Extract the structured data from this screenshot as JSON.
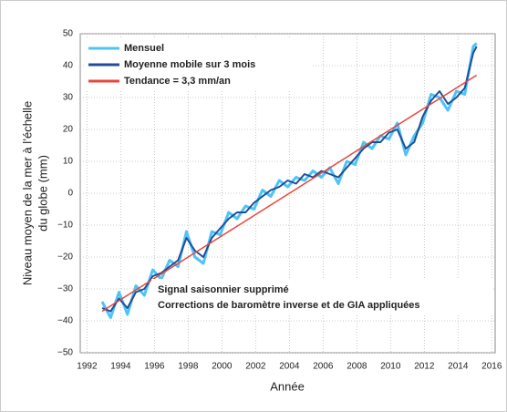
{
  "chart_data": {
    "type": "line",
    "y_label_lines": [
      "Niveau moyen de la mer à l’échelle",
      "du globe (mm)"
    ],
    "x_label": "Année",
    "annotations": [
      "Signal saisonnier supprimé",
      "Corrections de baromètre inverse et de GIA appliquées"
    ],
    "xlim": [
      1991.6,
      2016.2
    ],
    "ylim": [
      -50,
      50
    ],
    "xticks": [
      1992,
      1994,
      1996,
      1998,
      2000,
      2002,
      2004,
      2006,
      2008,
      2010,
      2012,
      2014,
      2016
    ],
    "yticks": [
      {
        "value": -50,
        "label": "−50"
      },
      {
        "value": -40,
        "label": "−40"
      },
      {
        "value": -30,
        "label": "−30"
      },
      {
        "value": -20,
        "label": "−20"
      },
      {
        "value": -10,
        "label": "−10"
      },
      0,
      10,
      20,
      30,
      40,
      50
    ],
    "grid": true,
    "legend": "upper left",
    "series": [
      {
        "name": "Mensuel",
        "color": "#4fc3f7",
        "x": [
          1992.9,
          1993.4,
          1993.9,
          1994.4,
          1994.9,
          1995.4,
          1995.9,
          1996.4,
          1996.9,
          1997.4,
          1997.9,
          1998.4,
          1998.9,
          1999.4,
          1999.9,
          2000.4,
          2000.9,
          2001.4,
          2001.9,
          2002.4,
          2002.9,
          2003.4,
          2003.9,
          2004.4,
          2004.9,
          2005.4,
          2005.9,
          2006.4,
          2006.9,
          2007.4,
          2007.9,
          2008.4,
          2008.9,
          2009.4,
          2009.9,
          2010.4,
          2010.9,
          2011.4,
          2011.9,
          2012.4,
          2012.9,
          2013.4,
          2013.9,
          2014.4,
          2014.9,
          2015.1
        ],
        "values": [
          -34,
          -39,
          -31,
          -38,
          -29,
          -32,
          -24,
          -27,
          -21,
          -23,
          -12,
          -20,
          -22,
          -12,
          -13,
          -6,
          -8,
          -4,
          -5,
          1,
          -1,
          4,
          2,
          5,
          4,
          7,
          5,
          8,
          3,
          10,
          9,
          16,
          14,
          18,
          17,
          22,
          12,
          18,
          22,
          31,
          30,
          26,
          32,
          31,
          46,
          47
        ]
      },
      {
        "name": "Moyenne mobile sur 3 mois",
        "color": "#1f4e96",
        "x": [
          1992.9,
          1993.4,
          1993.9,
          1994.4,
          1994.9,
          1995.4,
          1995.9,
          1996.4,
          1996.9,
          1997.4,
          1997.9,
          1998.4,
          1998.9,
          1999.4,
          1999.9,
          2000.4,
          2000.9,
          2001.4,
          2001.9,
          2002.4,
          2002.9,
          2003.4,
          2003.9,
          2004.4,
          2004.9,
          2005.4,
          2005.9,
          2006.4,
          2006.9,
          2007.4,
          2007.9,
          2008.4,
          2008.9,
          2009.4,
          2009.9,
          2010.4,
          2010.9,
          2011.4,
          2011.9,
          2012.4,
          2012.9,
          2013.4,
          2013.9,
          2014.4,
          2014.9,
          2015.1
        ],
        "values": [
          -36,
          -37,
          -33,
          -36,
          -31,
          -30,
          -26,
          -25,
          -23,
          -21,
          -14,
          -18,
          -20,
          -14,
          -11,
          -8,
          -6,
          -6,
          -3,
          -1,
          1,
          2,
          4,
          3,
          6,
          5,
          7,
          6,
          5,
          8,
          11,
          14,
          16,
          16,
          19,
          20,
          14,
          16,
          24,
          29,
          32,
          28,
          30,
          33,
          44,
          46
        ]
      },
      {
        "name": "Tendance = 3,3 mm/an",
        "color": "#e8463c",
        "x": [
          1992.9,
          2015.1
        ],
        "values": [
          -37,
          37
        ]
      }
    ]
  }
}
